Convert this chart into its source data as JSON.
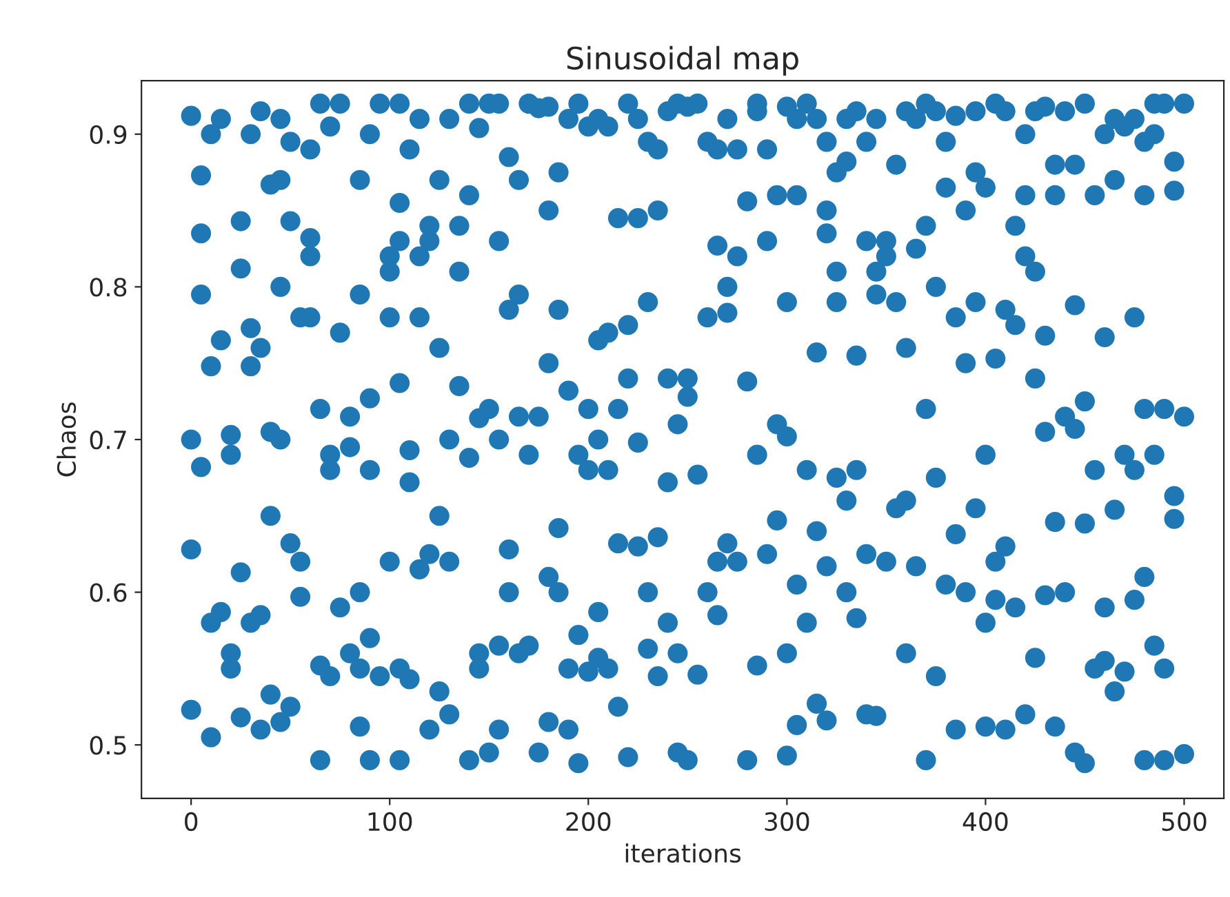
{
  "chart_data": {
    "type": "scatter",
    "title": "Sinusoidal map",
    "xlabel": "iterations",
    "ylabel": "Chaos",
    "xlim": [
      -25,
      520
    ],
    "ylim": [
      0.465,
      0.935
    ],
    "xticks": [
      0,
      100,
      200,
      300,
      400,
      500
    ],
    "yticks": [
      0.5,
      0.6,
      0.7,
      0.8,
      0.9
    ],
    "marker": "circle",
    "grid": false,
    "series": [
      {
        "color": "#1f77b4",
        "x": [
          0,
          0,
          0,
          0,
          5,
          5,
          5,
          5,
          10,
          10,
          10,
          10,
          15,
          15,
          15,
          20,
          20,
          20,
          20,
          25,
          25,
          25,
          25,
          30,
          30,
          30,
          30,
          35,
          35,
          35,
          35,
          40,
          40,
          40,
          40,
          45,
          45,
          45,
          45,
          45,
          50,
          50,
          50,
          50,
          55,
          55,
          55,
          60,
          60,
          60,
          60,
          65,
          65,
          65,
          65,
          70,
          70,
          70,
          70,
          75,
          75,
          75,
          80,
          80,
          80,
          85,
          85,
          85,
          85,
          85,
          90,
          90,
          90,
          90,
          90,
          95,
          95,
          100,
          100,
          100,
          100,
          105,
          105,
          105,
          105,
          105,
          105,
          110,
          110,
          110,
          110,
          115,
          115,
          115,
          115,
          120,
          120,
          120,
          120,
          125,
          125,
          125,
          125,
          130,
          130,
          130,
          130,
          135,
          135,
          135,
          140,
          140,
          140,
          140,
          145,
          145,
          145,
          145,
          150,
          150,
          150,
          155,
          155,
          155,
          155,
          155,
          160,
          160,
          160,
          160,
          165,
          165,
          165,
          165,
          170,
          170,
          170,
          175,
          175,
          175,
          180,
          180,
          180,
          180,
          180,
          185,
          185,
          185,
          185,
          190,
          190,
          190,
          190,
          195,
          195,
          195,
          195,
          200,
          200,
          200,
          200,
          205,
          205,
          205,
          205,
          205,
          210,
          210,
          210,
          210,
          215,
          215,
          215,
          215,
          220,
          220,
          220,
          220,
          225,
          225,
          225,
          225,
          230,
          230,
          230,
          230,
          235,
          235,
          235,
          235,
          240,
          240,
          240,
          240,
          245,
          245,
          245,
          245,
          250,
          250,
          250,
          250,
          255,
          255,
          255,
          260,
          260,
          260,
          265,
          265,
          265,
          265,
          270,
          270,
          270,
          270,
          275,
          275,
          275,
          280,
          280,
          280,
          285,
          285,
          285,
          285,
          290,
          290,
          290,
          295,
          295,
          295,
          300,
          300,
          300,
          300,
          300,
          305,
          305,
          305,
          305,
          310,
          310,
          310,
          315,
          315,
          315,
          315,
          320,
          320,
          320,
          320,
          320,
          325,
          325,
          325,
          325,
          330,
          330,
          330,
          330,
          335,
          335,
          335,
          335,
          340,
          340,
          340,
          340,
          345,
          345,
          345,
          345,
          350,
          350,
          350,
          355,
          355,
          355,
          360,
          360,
          360,
          360,
          365,
          365,
          365,
          370,
          370,
          370,
          370,
          375,
          375,
          375,
          375,
          380,
          380,
          380,
          385,
          385,
          385,
          385,
          390,
          390,
          390,
          395,
          395,
          395,
          395,
          400,
          400,
          400,
          400,
          405,
          405,
          405,
          405,
          410,
          410,
          410,
          410,
          415,
          415,
          415,
          420,
          420,
          420,
          420,
          425,
          425,
          425,
          425,
          430,
          430,
          430,
          430,
          435,
          435,
          435,
          435,
          440,
          440,
          440,
          445,
          445,
          445,
          445,
          450,
          450,
          450,
          450,
          455,
          455,
          455,
          460,
          460,
          460,
          460,
          465,
          465,
          465,
          465,
          470,
          470,
          470,
          475,
          475,
          475,
          475,
          480,
          480,
          480,
          480,
          480,
          485,
          485,
          485,
          485,
          490,
          490,
          490,
          490,
          495,
          495,
          495,
          495,
          500,
          500,
          500
        ],
        "values": [
          0.912,
          0.7,
          0.523,
          0.628,
          0.835,
          0.873,
          0.795,
          0.682,
          0.9,
          0.748,
          0.58,
          0.505,
          0.91,
          0.765,
          0.587,
          0.55,
          0.56,
          0.69,
          0.703,
          0.843,
          0.812,
          0.518,
          0.613,
          0.9,
          0.773,
          0.748,
          0.58,
          0.915,
          0.76,
          0.51,
          0.585,
          0.65,
          0.533,
          0.705,
          0.867,
          0.91,
          0.87,
          0.8,
          0.7,
          0.515,
          0.843,
          0.632,
          0.525,
          0.895,
          0.78,
          0.597,
          0.62,
          0.89,
          0.78,
          0.832,
          0.82,
          0.92,
          0.72,
          0.49,
          0.552,
          0.905,
          0.69,
          0.545,
          0.68,
          0.77,
          0.92,
          0.59,
          0.56,
          0.715,
          0.695,
          0.87,
          0.795,
          0.6,
          0.512,
          0.55,
          0.9,
          0.727,
          0.68,
          0.57,
          0.49,
          0.92,
          0.545,
          0.78,
          0.82,
          0.81,
          0.62,
          0.92,
          0.855,
          0.83,
          0.737,
          0.55,
          0.49,
          0.89,
          0.693,
          0.672,
          0.543,
          0.91,
          0.82,
          0.78,
          0.615,
          0.84,
          0.83,
          0.625,
          0.51,
          0.87,
          0.76,
          0.65,
          0.535,
          0.91,
          0.7,
          0.52,
          0.62,
          0.84,
          0.81,
          0.735,
          0.92,
          0.86,
          0.688,
          0.49,
          0.904,
          0.714,
          0.56,
          0.55,
          0.92,
          0.72,
          0.495,
          0.92,
          0.83,
          0.7,
          0.51,
          0.565,
          0.885,
          0.785,
          0.628,
          0.6,
          0.87,
          0.795,
          0.715,
          0.56,
          0.92,
          0.69,
          0.565,
          0.917,
          0.715,
          0.495,
          0.918,
          0.85,
          0.75,
          0.61,
          0.515,
          0.875,
          0.785,
          0.642,
          0.6,
          0.91,
          0.732,
          0.51,
          0.55,
          0.92,
          0.69,
          0.572,
          0.488,
          0.905,
          0.68,
          0.548,
          0.72,
          0.91,
          0.765,
          0.7,
          0.587,
          0.557,
          0.905,
          0.77,
          0.68,
          0.55,
          0.845,
          0.632,
          0.525,
          0.72,
          0.92,
          0.775,
          0.74,
          0.492,
          0.91,
          0.845,
          0.698,
          0.63,
          0.895,
          0.79,
          0.6,
          0.563,
          0.89,
          0.85,
          0.636,
          0.545,
          0.915,
          0.74,
          0.672,
          0.58,
          0.92,
          0.71,
          0.495,
          0.56,
          0.918,
          0.74,
          0.728,
          0.49,
          0.92,
          0.677,
          0.546,
          0.895,
          0.78,
          0.6,
          0.89,
          0.827,
          0.62,
          0.585,
          0.91,
          0.8,
          0.783,
          0.632,
          0.89,
          0.82,
          0.62,
          0.856,
          0.738,
          0.49,
          0.92,
          0.915,
          0.552,
          0.69,
          0.89,
          0.83,
          0.625,
          0.86,
          0.71,
          0.647,
          0.918,
          0.79,
          0.702,
          0.56,
          0.493,
          0.91,
          0.86,
          0.605,
          0.513,
          0.92,
          0.68,
          0.58,
          0.91,
          0.757,
          0.527,
          0.64,
          0.895,
          0.85,
          0.835,
          0.617,
          0.516,
          0.875,
          0.81,
          0.79,
          0.675,
          0.91,
          0.882,
          0.6,
          0.66,
          0.915,
          0.755,
          0.583,
          0.68,
          0.895,
          0.83,
          0.625,
          0.52,
          0.91,
          0.81,
          0.795,
          0.519,
          0.83,
          0.82,
          0.62,
          0.88,
          0.79,
          0.655,
          0.915,
          0.76,
          0.66,
          0.56,
          0.91,
          0.825,
          0.617,
          0.92,
          0.84,
          0.72,
          0.49,
          0.915,
          0.8,
          0.675,
          0.545,
          0.895,
          0.865,
          0.605,
          0.912,
          0.78,
          0.638,
          0.51,
          0.85,
          0.75,
          0.6,
          0.915,
          0.875,
          0.79,
          0.655,
          0.865,
          0.69,
          0.58,
          0.512,
          0.92,
          0.753,
          0.62,
          0.595,
          0.915,
          0.785,
          0.63,
          0.51,
          0.84,
          0.775,
          0.59,
          0.9,
          0.86,
          0.82,
          0.52,
          0.915,
          0.81,
          0.74,
          0.557,
          0.918,
          0.768,
          0.705,
          0.598,
          0.88,
          0.86,
          0.646,
          0.512,
          0.915,
          0.715,
          0.6,
          0.88,
          0.788,
          0.707,
          0.495,
          0.92,
          0.725,
          0.645,
          0.488,
          0.86,
          0.68,
          0.55,
          0.9,
          0.767,
          0.59,
          0.555,
          0.91,
          0.87,
          0.654,
          0.535,
          0.905,
          0.69,
          0.548,
          0.91,
          0.78,
          0.68,
          0.595,
          0.895,
          0.86,
          0.72,
          0.61,
          0.49,
          0.92,
          0.9,
          0.69,
          0.565,
          0.92,
          0.72,
          0.55,
          0.49,
          0.882,
          0.863,
          0.663,
          0.648,
          0.92,
          0.715,
          0.494
        ]
      }
    ]
  }
}
